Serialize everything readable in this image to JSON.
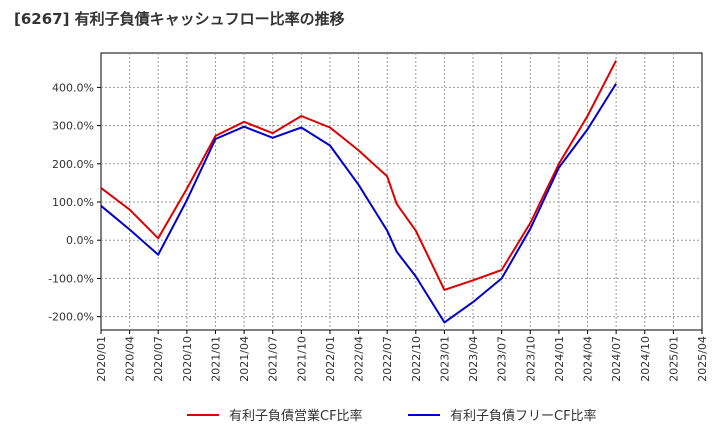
{
  "chart_data": {
    "type": "line",
    "title": "[6267]  有利子負債キャッシュフロー比率の推移",
    "xlabel": "",
    "ylabel": "",
    "x_ticks": [
      "2020/01",
      "2020/04",
      "2020/07",
      "2020/10",
      "2021/01",
      "2021/04",
      "2021/07",
      "2021/10",
      "2022/01",
      "2022/04",
      "2022/07",
      "2022/10",
      "2023/01",
      "2023/04",
      "2023/07",
      "2023/10",
      "2024/01",
      "2024/04",
      "2024/07",
      "2024/10",
      "2025/01",
      "2025/04"
    ],
    "y_ticks": [
      "-200.0%",
      "-100.0%",
      "0.0%",
      "100.0%",
      "200.0%",
      "300.0%",
      "400.0%"
    ],
    "ylim": [
      -235,
      490
    ],
    "grid": true,
    "legend_position": "bottom",
    "series": [
      {
        "name": "有利子負債営業CF比率",
        "color": "#dd0000",
        "points": [
          {
            "x": "2020/01",
            "y": 137
          },
          {
            "x": "2020/04",
            "y": 80
          },
          {
            "x": "2020/07",
            "y": 5
          },
          {
            "x": "2020/10",
            "y": 135
          },
          {
            "x": "2021/01",
            "y": 273
          },
          {
            "x": "2021/04",
            "y": 310
          },
          {
            "x": "2021/07",
            "y": 280
          },
          {
            "x": "2021/10",
            "y": 325
          },
          {
            "x": "2022/01",
            "y": 295
          },
          {
            "x": "2022/04",
            "y": 235
          },
          {
            "x": "2022/07",
            "y": 167
          },
          {
            "x": "2022/08",
            "y": 95
          },
          {
            "x": "2022/10",
            "y": 25
          },
          {
            "x": "2023/01",
            "y": -130
          },
          {
            "x": "2023/04",
            "y": -105
          },
          {
            "x": "2023/07",
            "y": -78
          },
          {
            "x": "2023/10",
            "y": 45
          },
          {
            "x": "2024/01",
            "y": 200
          },
          {
            "x": "2024/04",
            "y": 325
          },
          {
            "x": "2024/07",
            "y": 470
          }
        ]
      },
      {
        "name": "有利子負債フリーCF比率",
        "color": "#0000cc",
        "points": [
          {
            "x": "2020/01",
            "y": 90
          },
          {
            "x": "2020/04",
            "y": 28
          },
          {
            "x": "2020/07",
            "y": -38
          },
          {
            "x": "2020/10",
            "y": 105
          },
          {
            "x": "2021/01",
            "y": 265
          },
          {
            "x": "2021/04",
            "y": 297
          },
          {
            "x": "2021/07",
            "y": 268
          },
          {
            "x": "2021/10",
            "y": 295
          },
          {
            "x": "2022/01",
            "y": 248
          },
          {
            "x": "2022/04",
            "y": 145
          },
          {
            "x": "2022/07",
            "y": 25
          },
          {
            "x": "2022/08",
            "y": -30
          },
          {
            "x": "2022/10",
            "y": -95
          },
          {
            "x": "2023/01",
            "y": -215
          },
          {
            "x": "2023/04",
            "y": -162
          },
          {
            "x": "2023/07",
            "y": -100
          },
          {
            "x": "2023/10",
            "y": 30
          },
          {
            "x": "2024/01",
            "y": 190
          },
          {
            "x": "2024/04",
            "y": 290
          },
          {
            "x": "2024/07",
            "y": 410
          }
        ]
      }
    ]
  }
}
